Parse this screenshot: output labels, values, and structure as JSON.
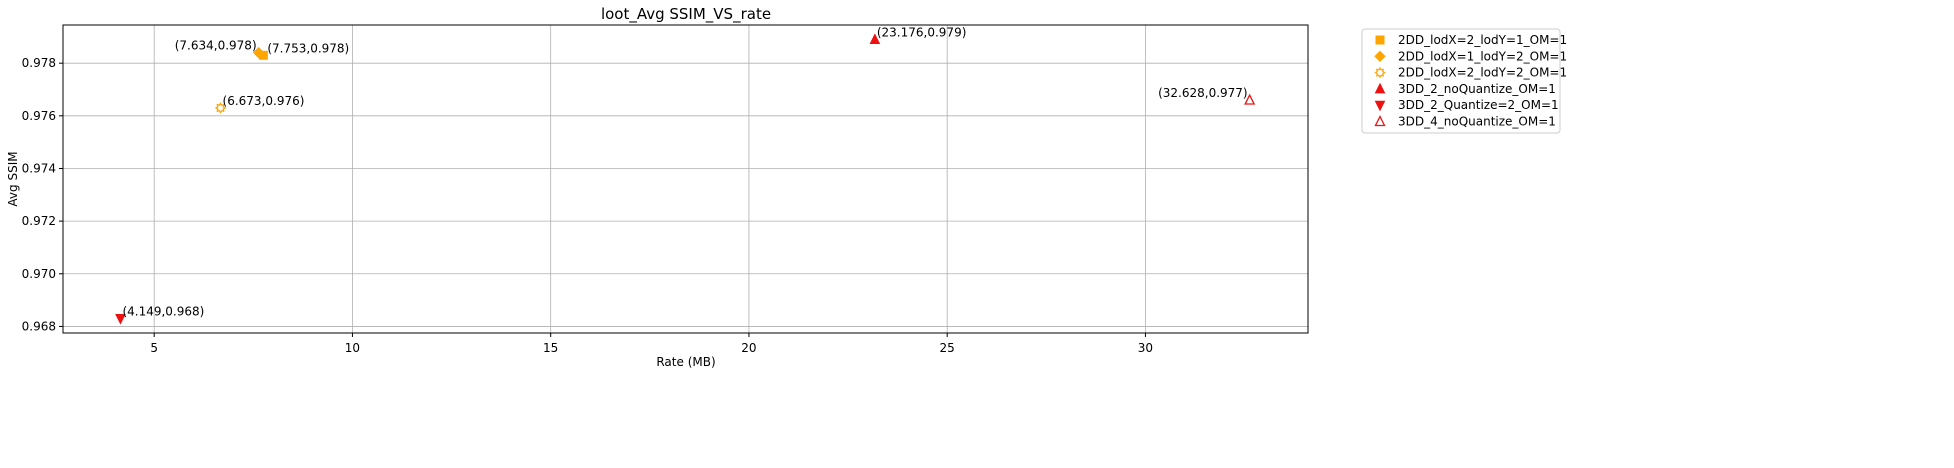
{
  "chart_data": {
    "type": "scatter",
    "title": "loot_Avg SSIM_VS_rate",
    "xlabel": "Rate (MB)",
    "ylabel": "Avg SSIM",
    "xlim": [
      2.7,
      34.1
    ],
    "ylim": [
      0.96775,
      0.97945
    ],
    "xticks": [
      5,
      10,
      15,
      20,
      25,
      30
    ],
    "yticks": [
      0.968,
      0.97,
      0.972,
      0.974,
      0.976,
      0.978
    ],
    "grid": true,
    "legend_position": "outside-right",
    "series": [
      {
        "name": "2DD_lodX=2_lodY=1_OM=1",
        "marker": "square",
        "color": "#FFA500",
        "filled": true,
        "points": [
          {
            "x": 7.753,
            "y": 0.9783,
            "label": "(7.753,0.978)"
          }
        ]
      },
      {
        "name": "2DD_lodX=1_lodY=2_OM=1",
        "marker": "diamond",
        "color": "#FFA500",
        "filled": true,
        "points": [
          {
            "x": 7.634,
            "y": 0.9784,
            "label": "(7.634,0.978)"
          }
        ]
      },
      {
        "name": "2DD_lodX=2_lodY=2_OM=1",
        "marker": "gear",
        "color": "#FFA500",
        "filled": false,
        "points": [
          {
            "x": 6.673,
            "y": 0.9763,
            "label": "(6.673,0.976)"
          }
        ]
      },
      {
        "name": "3DD_2_noQuantize_OM=1",
        "marker": "triangle-up",
        "color": "#EE1111",
        "filled": true,
        "points": [
          {
            "x": 23.176,
            "y": 0.9789,
            "label": "(23.176,0.979)"
          }
        ]
      },
      {
        "name": "3DD_2_Quantize=2_OM=1",
        "marker": "triangle-down",
        "color": "#EE1111",
        "filled": true,
        "points": [
          {
            "x": 4.149,
            "y": 0.9683,
            "label": "(4.149,0.968)"
          }
        ]
      },
      {
        "name": "3DD_4_noQuantize_OM=1",
        "marker": "triangle-up",
        "color": "#EE1111",
        "filled": false,
        "points": [
          {
            "x": 32.628,
            "y": 0.9766,
            "label": "(32.628,0.977)"
          }
        ]
      }
    ]
  }
}
